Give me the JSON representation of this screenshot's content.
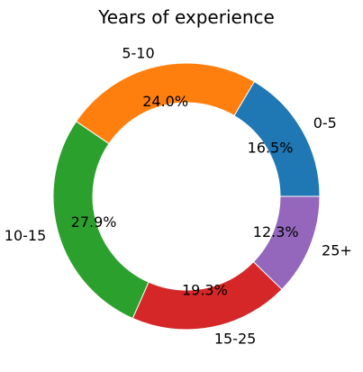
{
  "chart_data": {
    "type": "pie",
    "donut": true,
    "title": "Years of experience",
    "slices": [
      {
        "label": "0-5",
        "value": 16.5,
        "pct_label": "16.5%",
        "color": "#1f77b4"
      },
      {
        "label": "5-10",
        "value": 24.0,
        "pct_label": "24.0%",
        "color": "#ff7f0e"
      },
      {
        "label": "10-15",
        "value": 27.9,
        "pct_label": "27.9%",
        "color": "#2ca02c"
      },
      {
        "label": "15-25",
        "value": 19.3,
        "pct_label": "19.3%",
        "color": "#d62728"
      },
      {
        "label": "25+",
        "value": 12.3,
        "pct_label": "12.3%",
        "color": "#9467bd"
      }
    ]
  }
}
